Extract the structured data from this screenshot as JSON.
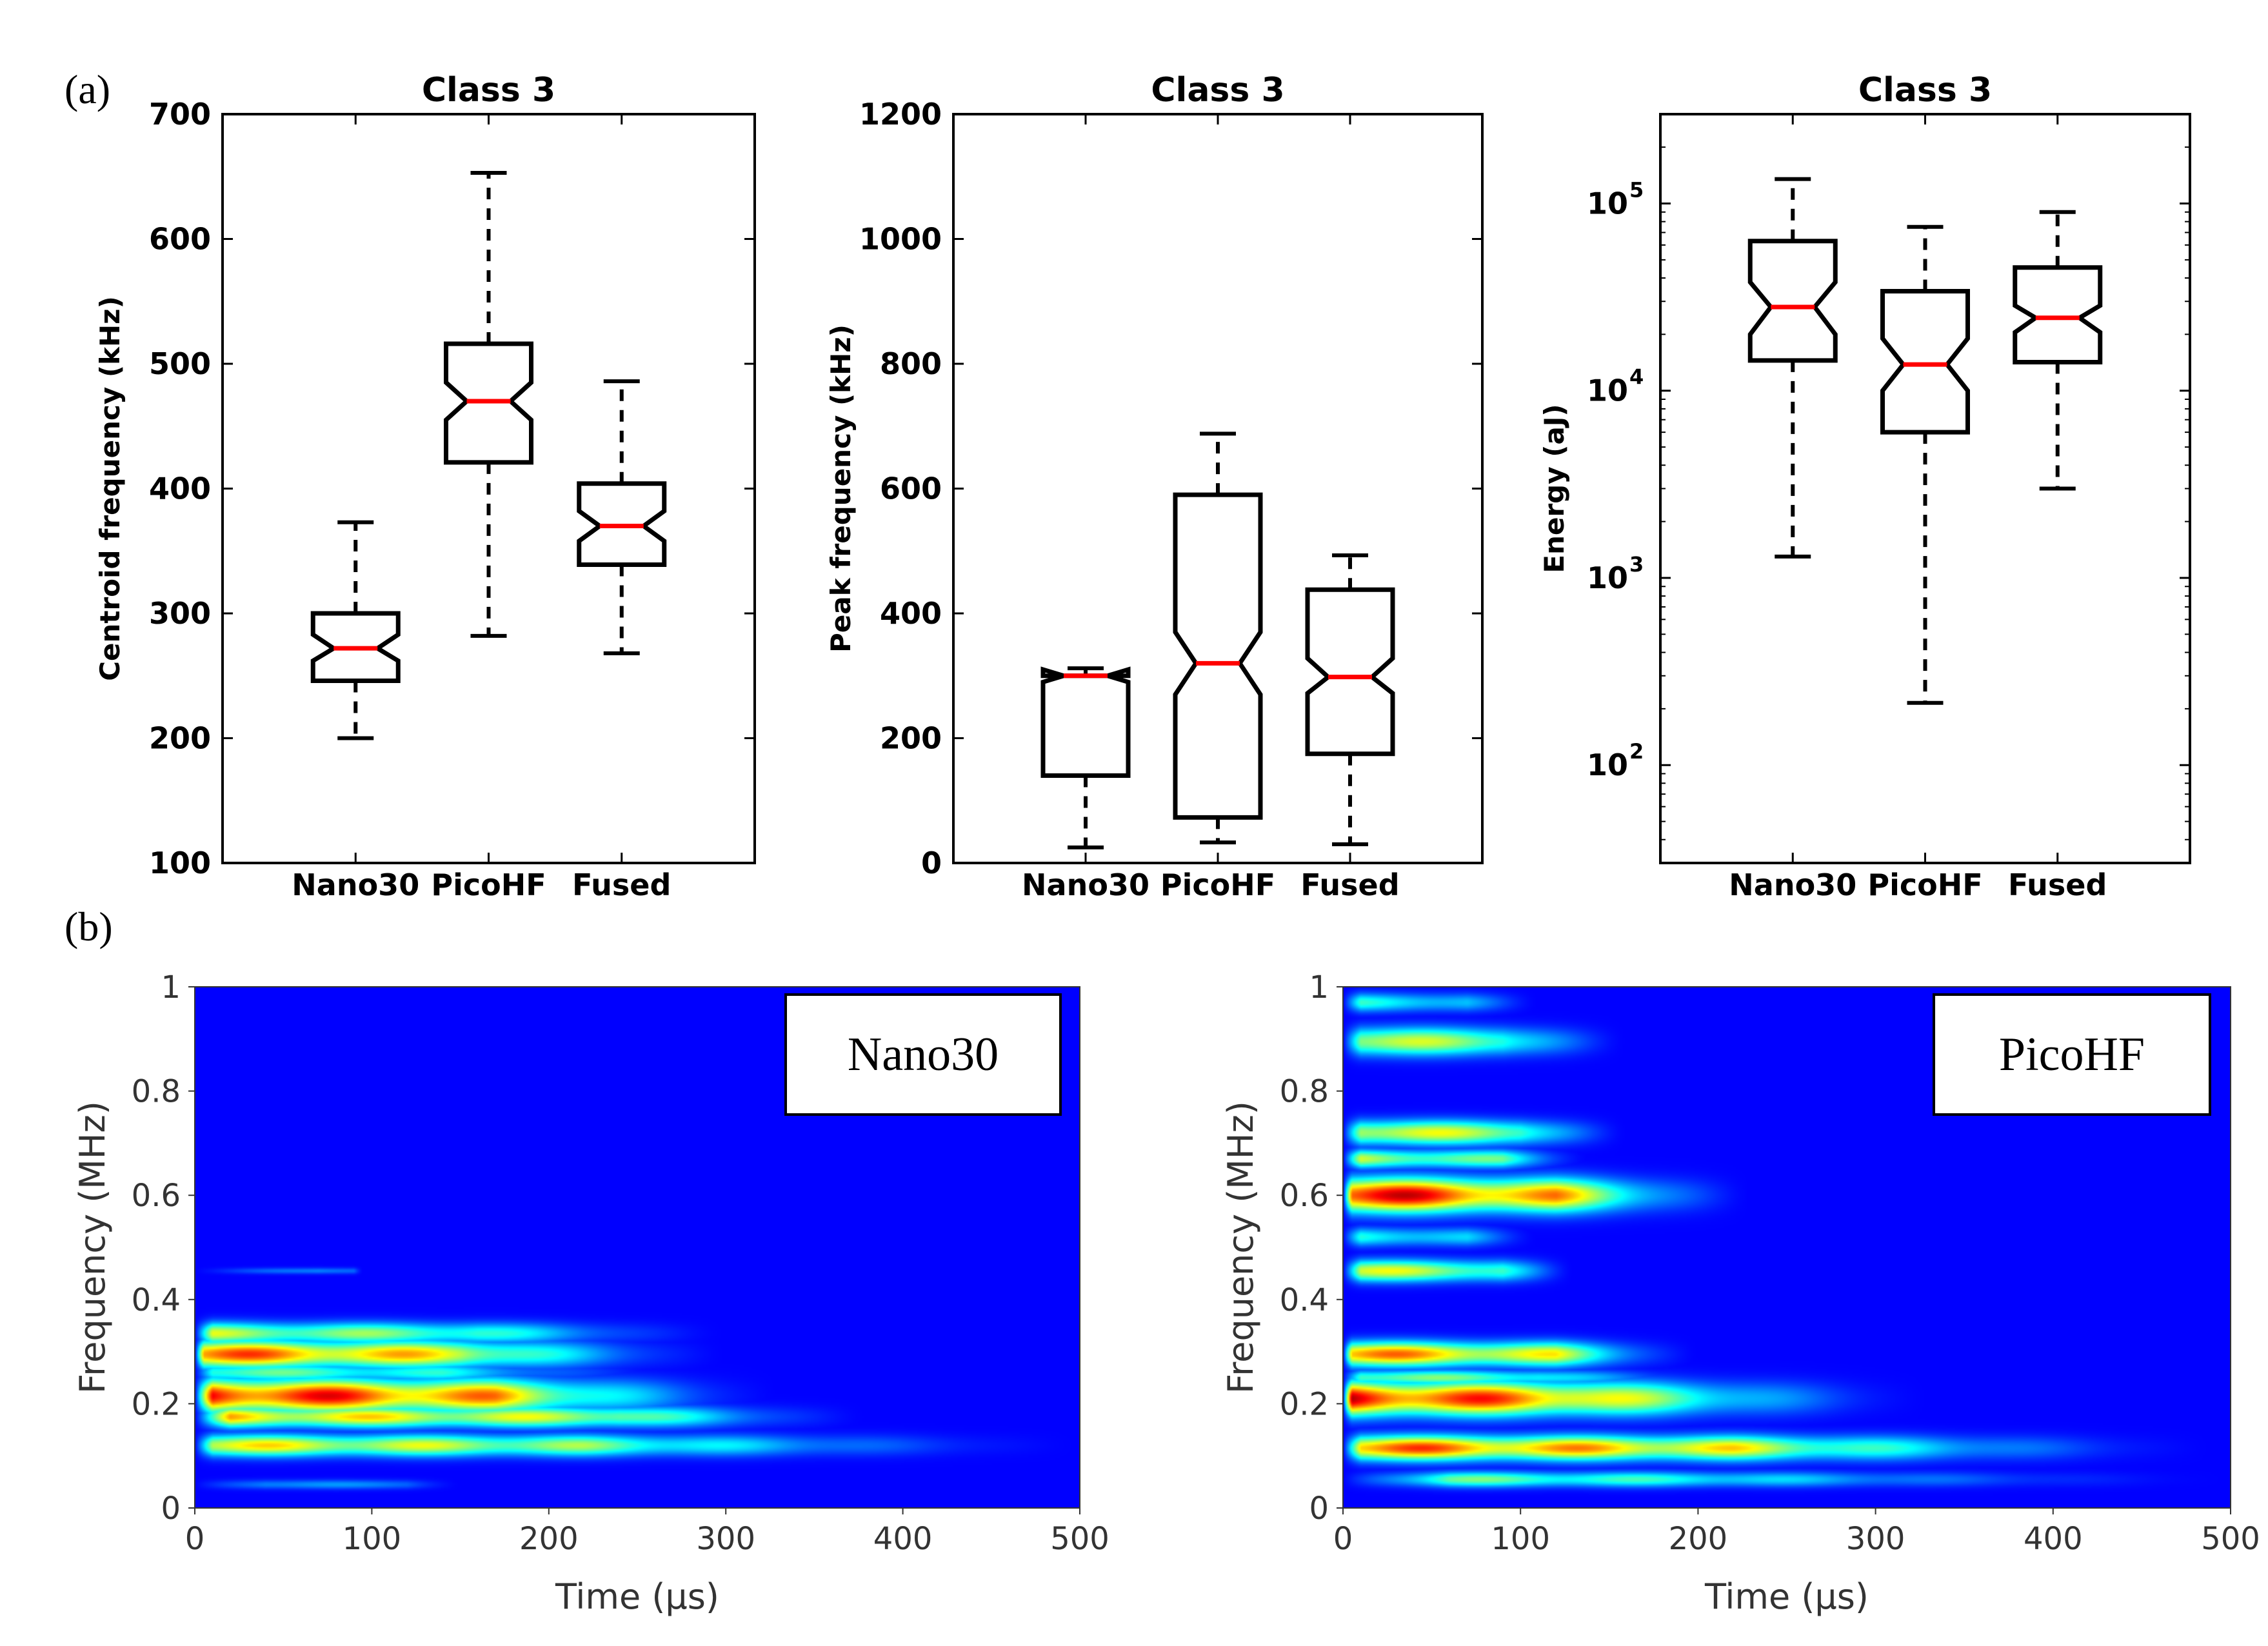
{
  "panel_labels": {
    "a": "(a)",
    "b": "(b)"
  },
  "chart_data": [
    {
      "type": "box",
      "title": "Class 3",
      "ylabel": "Centroid frequency (kHz)",
      "xlabel": "",
      "ylim": [
        100,
        700
      ],
      "yticks": [
        100,
        200,
        300,
        400,
        500,
        600,
        700
      ],
      "yticklabels": [
        "100",
        "200",
        "300",
        "400",
        "500",
        "600",
        "700"
      ],
      "categories": [
        "Nano30",
        "PicoHF",
        "Fused"
      ],
      "boxes": [
        {
          "name": "Nano30",
          "whislo": 200,
          "q1": 246,
          "med": 272,
          "q3": 300,
          "whishi": 373,
          "notchlo": 262,
          "notchhi": 283
        },
        {
          "name": "PicoHF",
          "whislo": 282,
          "q1": 421,
          "med": 470,
          "q3": 516,
          "whishi": 653,
          "notchlo": 455,
          "notchhi": 485
        },
        {
          "name": "Fused",
          "whislo": 268,
          "q1": 339,
          "med": 370,
          "q3": 404,
          "whishi": 486,
          "notchlo": 358,
          "notchhi": 382
        }
      ]
    },
    {
      "type": "box",
      "title": "Class 3",
      "ylabel": "Peak frequency (kHz)",
      "xlabel": "",
      "ylim": [
        0,
        1200
      ],
      "yticks": [
        0,
        200,
        400,
        600,
        800,
        1000,
        1200
      ],
      "yticklabels": [
        "0",
        "200",
        "400",
        "600",
        "800",
        "1000",
        "1200"
      ],
      "categories": [
        "Nano30",
        "PicoHF",
        "Fused"
      ],
      "boxes": [
        {
          "name": "Nano30",
          "whislo": 25,
          "q1": 140,
          "med": 300,
          "q3": 300,
          "whishi": 312,
          "notchlo": 290,
          "notchhi": 310
        },
        {
          "name": "PicoHF",
          "whislo": 33,
          "q1": 73,
          "med": 320,
          "q3": 590,
          "whishi": 688,
          "notchlo": 270,
          "notchhi": 370
        },
        {
          "name": "Fused",
          "whislo": 30,
          "q1": 175,
          "med": 298,
          "q3": 438,
          "whishi": 493,
          "notchlo": 272,
          "notchhi": 328
        }
      ]
    },
    {
      "type": "box",
      "scale": "log",
      "title": "Class 3",
      "ylabel": "Energy (aJ)",
      "xlabel": "",
      "ylim": [
        30,
        300000
      ],
      "yticks": [
        100,
        1000,
        10000,
        100000
      ],
      "yticklabels": [
        "10",
        "10",
        "10",
        "10"
      ],
      "ytick_exponents": [
        "2",
        "3",
        "4",
        "5"
      ],
      "categories": [
        "Nano30",
        "PicoHF",
        "Fused"
      ],
      "boxes": [
        {
          "name": "Nano30",
          "whislo": 1300,
          "q1": 14500,
          "med": 28000,
          "q3": 63000,
          "whishi": 135000,
          "notchlo": 20000,
          "notchhi": 38000
        },
        {
          "name": "PicoHF",
          "whislo": 215,
          "q1": 6000,
          "med": 13800,
          "q3": 34000,
          "whishi": 75000,
          "notchlo": 10000,
          "notchhi": 19000
        },
        {
          "name": "Fused",
          "whislo": 3000,
          "q1": 14200,
          "med": 24500,
          "q3": 45500,
          "whishi": 90000,
          "notchlo": 20500,
          "notchhi": 28500
        }
      ]
    },
    {
      "type": "heatmap",
      "title": "",
      "label": "Nano30",
      "xlabel": "Time (μs)",
      "ylabel": "Frequency (MHz)",
      "xlim": [
        0,
        500
      ],
      "ylim": [
        0,
        1
      ],
      "xticks": [
        0,
        100,
        200,
        300,
        400,
        500
      ],
      "xticklabels": [
        "0",
        "100",
        "200",
        "300",
        "400",
        "500"
      ],
      "yticks": [
        0,
        0.2,
        0.4,
        0.6,
        0.8,
        1
      ],
      "yticklabels": [
        "0",
        "0.2",
        "0.4",
        "0.6",
        "0.8",
        "1"
      ],
      "colormap": "jet",
      "bands": [
        {
          "f": 0.335,
          "t0": 10,
          "t1": 160,
          "peak": 0.55,
          "fade": 300,
          "w": 0.014
        },
        {
          "f": 0.295,
          "t0": 5,
          "t1": 150,
          "peak": 0.85,
          "fade": 300,
          "w": 0.018
        },
        {
          "f": 0.26,
          "t0": 10,
          "t1": 140,
          "peak": 0.45,
          "fade": 280,
          "w": 0.012
        },
        {
          "f": 0.215,
          "t0": 10,
          "t1": 170,
          "peak": 1.0,
          "fade": 330,
          "w": 0.022
        },
        {
          "f": 0.175,
          "t0": 20,
          "t1": 240,
          "peak": 0.7,
          "fade": 380,
          "w": 0.014
        },
        {
          "f": 0.12,
          "t0": 10,
          "t1": 220,
          "peak": 0.65,
          "fade": 500,
          "w": 0.014
        },
        {
          "f": 0.455,
          "t0": 70,
          "t1": 90,
          "peak": 0.2,
          "fade": 95,
          "w": 0.004
        },
        {
          "f": 0.045,
          "t0": 40,
          "t1": 120,
          "peak": 0.2,
          "fade": 150,
          "w": 0.006
        }
      ]
    },
    {
      "type": "heatmap",
      "title": "",
      "label": "PicoHF",
      "xlabel": "Time (μs)",
      "ylabel": "Frequency (MHz)",
      "xlim": [
        0,
        500
      ],
      "ylim": [
        0,
        1
      ],
      "xticks": [
        0,
        100,
        200,
        300,
        400,
        500
      ],
      "xticklabels": [
        "0",
        "100",
        "200",
        "300",
        "400",
        "500"
      ],
      "yticks": [
        0,
        0.2,
        0.4,
        0.6,
        0.8,
        1
      ],
      "yticklabels": [
        "0",
        "0.2",
        "0.4",
        "0.6",
        "0.8",
        "1"
      ],
      "colormap": "jet",
      "bands": [
        {
          "f": 0.97,
          "t0": 10,
          "t1": 70,
          "peak": 0.35,
          "fade": 110,
          "w": 0.012
        },
        {
          "f": 0.895,
          "t0": 10,
          "t1": 90,
          "peak": 0.6,
          "fade": 160,
          "w": 0.018
        },
        {
          "f": 0.72,
          "t0": 10,
          "t1": 100,
          "peak": 0.65,
          "fade": 160,
          "w": 0.016
        },
        {
          "f": 0.67,
          "t0": 10,
          "t1": 90,
          "peak": 0.55,
          "fade": 140,
          "w": 0.012
        },
        {
          "f": 0.6,
          "t0": 5,
          "t1": 120,
          "peak": 1.0,
          "fade": 230,
          "w": 0.022
        },
        {
          "f": 0.52,
          "t0": 10,
          "t1": 70,
          "peak": 0.35,
          "fade": 110,
          "w": 0.012
        },
        {
          "f": 0.455,
          "t0": 10,
          "t1": 90,
          "peak": 0.6,
          "fade": 130,
          "w": 0.014
        },
        {
          "f": 0.295,
          "t0": 5,
          "t1": 120,
          "peak": 0.8,
          "fade": 200,
          "w": 0.016
        },
        {
          "f": 0.25,
          "t0": 10,
          "t1": 110,
          "peak": 0.5,
          "fade": 220,
          "w": 0.01
        },
        {
          "f": 0.21,
          "t0": 5,
          "t1": 130,
          "peak": 1.0,
          "fade": 330,
          "w": 0.022
        },
        {
          "f": 0.115,
          "t0": 10,
          "t1": 220,
          "peak": 0.85,
          "fade": 490,
          "w": 0.016
        },
        {
          "f": 0.055,
          "t0": 60,
          "t1": 200,
          "peak": 0.45,
          "fade": 500,
          "w": 0.01
        }
      ]
    }
  ]
}
